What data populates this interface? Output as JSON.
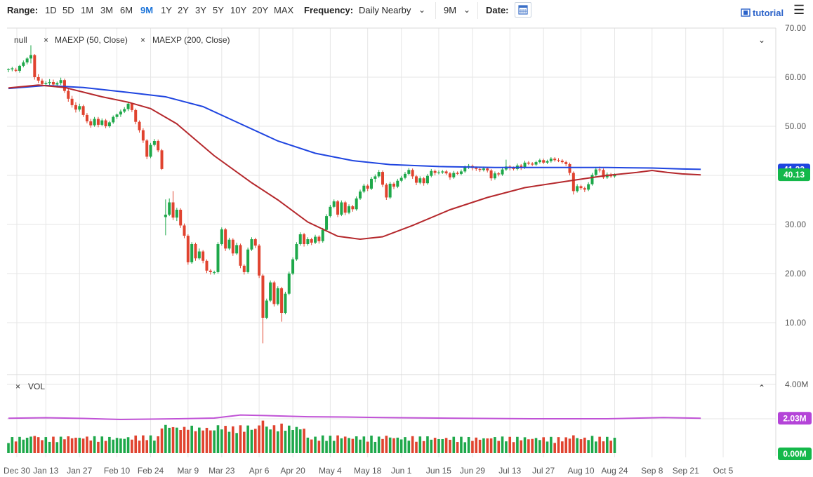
{
  "toolbar": {
    "range_label": "Range:",
    "ranges": [
      "1D",
      "5D",
      "1M",
      "3M",
      "6M",
      "9M",
      "1Y",
      "2Y",
      "3Y",
      "5Y",
      "10Y",
      "20Y",
      "MAX"
    ],
    "active_range": "9M",
    "frequency_label": "Frequency:",
    "frequency_value": "Daily Nearby",
    "period_value": "9M",
    "date_label": "Date:",
    "tutorial_label": "tutorial"
  },
  "legend": {
    "items": [
      "null",
      "MAEXP (50, Close)",
      "MAEXP (200, Close)"
    ],
    "volume_label": "VOL"
  },
  "chart_data": {
    "type": "candlestick",
    "x_ticks": [
      "Dec 30",
      "Jan 13",
      "Jan 27",
      "Feb 10",
      "Feb 24",
      "Mar 9",
      "Mar 23",
      "Apr 6",
      "Apr 20",
      "May 4",
      "May 18",
      "Jun 1",
      "Jun 15",
      "Jun 29",
      "Jul 13",
      "Jul 27",
      "Aug 10",
      "Aug 24",
      "Sep 8",
      "Sep 21",
      "Oct 5"
    ],
    "y_ticks": [
      "10.00",
      "20.00",
      "30.00",
      "40.00",
      "50.00",
      "60.00",
      "70.00"
    ],
    "ylim": [
      0,
      71
    ],
    "price_badge": "40.13",
    "ma200_badge": "41.23",
    "vol_ticks": [
      "4.00M"
    ],
    "vol_ylim": [
      0,
      4.0
    ],
    "vol_ma_badge": "2.03M",
    "vol_zero_badge": "0.00M",
    "colors": {
      "up": "#1ea84a",
      "down": "#e0432f",
      "ma50": "#b5282c",
      "ma200": "#1f45e0",
      "vol_ma": "#c052d6",
      "grid": "#e6e6e6",
      "badge_green": "#14b84a",
      "badge_blue": "#1f45e0",
      "badge_purple": "#b444d8"
    },
    "candles": [
      [
        61.5,
        61.8,
        61,
        61.6
      ],
      [
        61.6,
        62.1,
        61.2,
        61.8
      ],
      [
        61.5,
        61.9,
        61.0,
        61.3
      ],
      [
        61.3,
        62.5,
        60.9,
        62.3
      ],
      [
        62.3,
        63.4,
        62.0,
        63.0
      ],
      [
        63,
        64.1,
        62.6,
        63.8
      ],
      [
        63.8,
        66.5,
        62.8,
        64.5
      ],
      [
        64.5,
        64.7,
        59.5,
        60.0
      ],
      [
        60.0,
        60.6,
        58.8,
        59.3
      ],
      [
        59.3,
        59.7,
        58.2,
        58.6
      ],
      [
        58.6,
        59.2,
        58.1,
        58.8
      ],
      [
        58.8,
        59.6,
        58.4,
        59.0
      ],
      [
        59.0,
        59.5,
        58.2,
        58.5
      ],
      [
        58.5,
        59.1,
        57.9,
        58.8
      ],
      [
        58.8,
        59.9,
        58.4,
        59.4
      ],
      [
        59.4,
        59.7,
        56.8,
        57.2
      ],
      [
        57.2,
        57.7,
        55.0,
        55.6
      ],
      [
        55.6,
        56.2,
        53.8,
        54.3
      ],
      [
        54.3,
        54.9,
        52.8,
        53.4
      ],
      [
        53.4,
        54.6,
        53.0,
        54.1
      ],
      [
        54.1,
        54.4,
        51.9,
        52.3
      ],
      [
        52.3,
        52.7,
        50.6,
        51.0
      ],
      [
        51.0,
        51.5,
        49.7,
        50.2
      ],
      [
        50.2,
        51.9,
        49.9,
        51.5
      ],
      [
        51.5,
        51.9,
        49.8,
        50.3
      ],
      [
        50.3,
        51.6,
        50.0,
        51.2
      ],
      [
        51.2,
        51.5,
        49.6,
        50.0
      ],
      [
        50.0,
        51.1,
        49.7,
        50.8
      ],
      [
        50.8,
        52.2,
        50.5,
        51.9
      ],
      [
        51.9,
        52.6,
        51.5,
        52.4
      ],
      [
        52.4,
        53.4,
        51.9,
        53.0
      ],
      [
        53.0,
        53.9,
        52.7,
        53.5
      ],
      [
        53.5,
        55.0,
        53.1,
        54.6
      ],
      [
        54.6,
        54.8,
        52.9,
        53.3
      ],
      [
        53.3,
        53.6,
        50.4,
        50.9
      ],
      [
        50.9,
        51.2,
        48.7,
        49.2
      ],
      [
        49.2,
        49.6,
        46.6,
        47.1
      ],
      [
        47.1,
        47.4,
        43.3,
        43.8
      ],
      [
        43.8,
        46.6,
        43.5,
        46.2
      ],
      [
        46.2,
        47.4,
        45.9,
        47.0
      ],
      [
        47.0,
        47.3,
        44.7,
        45.1
      ],
      [
        45.1,
        45.4,
        41.1,
        41.3
      ],
      [
        31.5,
        35.1,
        27.8,
        32.0
      ],
      [
        32.0,
        35.3,
        31.7,
        34.5
      ],
      [
        34.5,
        36.8,
        30.9,
        31.4
      ],
      [
        31.4,
        33.4,
        30.7,
        33.0
      ],
      [
        33.0,
        33.3,
        29.3,
        29.8
      ],
      [
        29.8,
        30.2,
        27.2,
        27.7
      ],
      [
        27.7,
        28.0,
        21.8,
        22.3
      ],
      [
        22.3,
        26.4,
        22.0,
        26.0
      ],
      [
        26.0,
        26.3,
        22.6,
        23.1
      ],
      [
        23.1,
        25.1,
        22.8,
        24.5
      ],
      [
        24.5,
        24.8,
        22.1,
        22.6
      ],
      [
        22.6,
        22.9,
        20.1,
        20.6
      ],
      [
        20.6,
        20.9,
        19.8,
        20.3
      ],
      [
        20.3,
        20.6,
        19.8,
        20.3
      ],
      [
        20.3,
        26.4,
        20.0,
        26.0
      ],
      [
        26.0,
        29.4,
        25.7,
        29.0
      ],
      [
        29.0,
        29.3,
        24.6,
        25.1
      ],
      [
        25.1,
        27.3,
        24.8,
        26.9
      ],
      [
        26.9,
        27.2,
        23.6,
        24.1
      ],
      [
        24.1,
        26.3,
        23.8,
        25.8
      ],
      [
        25.8,
        26.1,
        21.1,
        21.6
      ],
      [
        21.6,
        21.9,
        19.8,
        20.3
      ],
      [
        20.3,
        25.3,
        20.0,
        24.9
      ],
      [
        24.9,
        27.4,
        24.6,
        27.0
      ],
      [
        27.0,
        27.3,
        25.2,
        25.7
      ],
      [
        25.7,
        26.0,
        19.1,
        19.6
      ],
      [
        19.6,
        19.9,
        5.8,
        11.0
      ],
      [
        11.0,
        14.9,
        10.7,
        14.5
      ],
      [
        14.5,
        18.6,
        14.2,
        18.2
      ],
      [
        18.2,
        18.5,
        13.3,
        13.8
      ],
      [
        13.8,
        17.4,
        13.5,
        17.0
      ],
      [
        17.0,
        17.3,
        10.2,
        12.0
      ],
      [
        12.0,
        16.3,
        11.7,
        15.9
      ],
      [
        15.9,
        20.4,
        15.6,
        20.0
      ],
      [
        20.0,
        23.3,
        19.7,
        22.9
      ],
      [
        22.9,
        26.4,
        22.6,
        26.0
      ],
      [
        26.0,
        28.4,
        25.7,
        28.0
      ],
      [
        28.0,
        28.3,
        25.5,
        26.0
      ],
      [
        26.0,
        27.4,
        25.7,
        27.0
      ],
      [
        27.0,
        27.3,
        25.8,
        26.3
      ],
      [
        26.3,
        27.9,
        26.0,
        27.5
      ],
      [
        27.5,
        27.8,
        26.1,
        26.6
      ],
      [
        26.6,
        29.3,
        26.3,
        28.9
      ],
      [
        28.9,
        32.1,
        28.6,
        31.7
      ],
      [
        31.7,
        34.0,
        31.4,
        33.6
      ],
      [
        33.6,
        35.1,
        33.3,
        34.7
      ],
      [
        34.7,
        35.0,
        31.5,
        32.0
      ],
      [
        32.0,
        34.9,
        31.7,
        34.5
      ],
      [
        34.5,
        34.8,
        31.9,
        32.4
      ],
      [
        32.4,
        34.1,
        32.1,
        33.7
      ],
      [
        33.7,
        34.0,
        32.6,
        33.1
      ],
      [
        33.1,
        35.7,
        32.8,
        35.3
      ],
      [
        35.3,
        37.1,
        35.0,
        36.7
      ],
      [
        36.7,
        38.3,
        36.4,
        37.9
      ],
      [
        37.9,
        38.2,
        36.8,
        37.3
      ],
      [
        37.3,
        39.7,
        37.0,
        39.3
      ],
      [
        39.3,
        40.2,
        38.6,
        39.8
      ],
      [
        39.8,
        41.1,
        39.5,
        40.7
      ],
      [
        40.7,
        41.0,
        37.6,
        38.1
      ],
      [
        38.1,
        38.4,
        35.0,
        35.5
      ],
      [
        35.5,
        38.7,
        35.2,
        38.3
      ],
      [
        38.3,
        38.6,
        37.2,
        37.7
      ],
      [
        37.7,
        39.3,
        37.4,
        38.9
      ],
      [
        38.9,
        39.9,
        38.6,
        39.5
      ],
      [
        39.5,
        40.7,
        39.2,
        40.3
      ],
      [
        40.3,
        41.5,
        40.0,
        41.1
      ],
      [
        41.1,
        41.4,
        39.3,
        39.8
      ],
      [
        39.8,
        40.1,
        38.0,
        38.5
      ],
      [
        38.5,
        39.8,
        38.2,
        39.4
      ],
      [
        39.4,
        39.7,
        37.9,
        38.4
      ],
      [
        38.4,
        40.3,
        38.1,
        39.9
      ],
      [
        39.9,
        41.3,
        39.6,
        40.9
      ],
      [
        40.9,
        41.2,
        40.0,
        40.5
      ],
      [
        40.5,
        41.0,
        40.2,
        40.6
      ],
      [
        40.6,
        41.1,
        40.3,
        40.8
      ],
      [
        40.8,
        41.1,
        40.1,
        40.4
      ],
      [
        40.4,
        40.7,
        39.1,
        39.6
      ],
      [
        39.6,
        40.9,
        39.3,
        40.5
      ],
      [
        40.5,
        40.8,
        40.1,
        40.3
      ],
      [
        40.3,
        41.2,
        40.0,
        40.8
      ],
      [
        40.8,
        42.0,
        40.5,
        41.6
      ],
      [
        41.6,
        42.3,
        41.3,
        41.9
      ],
      [
        41.9,
        42.2,
        41.0,
        41.5
      ],
      [
        41.5,
        41.8,
        40.9,
        41.3
      ],
      [
        41.3,
        41.6,
        40.7,
        41.1
      ],
      [
        41.1,
        41.8,
        40.8,
        41.4
      ],
      [
        41.4,
        41.7,
        40.6,
        41.0
      ],
      [
        41.0,
        41.3,
        38.9,
        39.4
      ],
      [
        39.4,
        40.8,
        39.1,
        40.4
      ],
      [
        40.4,
        40.7,
        39.8,
        40.2
      ],
      [
        40.2,
        41.6,
        39.9,
        41.2
      ],
      [
        41.2,
        43.2,
        40.9,
        41.8
      ],
      [
        41.8,
        42.1,
        41.0,
        41.5
      ],
      [
        41.5,
        41.8,
        41.0,
        41.3
      ],
      [
        41.3,
        42.4,
        41.0,
        42.0
      ],
      [
        42.0,
        42.3,
        41.1,
        41.6
      ],
      [
        41.6,
        43.0,
        41.3,
        42.6
      ],
      [
        42.6,
        42.9,
        42.1,
        42.4
      ],
      [
        42.4,
        42.7,
        41.9,
        42.2
      ],
      [
        42.2,
        43.0,
        41.9,
        42.7
      ],
      [
        42.7,
        43.4,
        42.4,
        43.1
      ],
      [
        43.1,
        43.4,
        42.3,
        42.6
      ],
      [
        42.6,
        43.2,
        42.3,
        42.9
      ],
      [
        42.9,
        43.7,
        42.6,
        43.4
      ],
      [
        43.4,
        43.7,
        42.8,
        43.1
      ],
      [
        43.1,
        43.5,
        42.7,
        43.0
      ],
      [
        43.0,
        43.3,
        42.4,
        42.7
      ],
      [
        42.7,
        43.0,
        41.9,
        42.3
      ],
      [
        42.3,
        42.6,
        40.0,
        40.5
      ],
      [
        40.5,
        40.8,
        36.1,
        36.8
      ],
      [
        36.8,
        38.2,
        36.5,
        37.8
      ],
      [
        37.8,
        38.1,
        37.0,
        37.4
      ],
      [
        37.4,
        37.7,
        36.6,
        37.1
      ],
      [
        37.1,
        38.6,
        36.8,
        38.2
      ],
      [
        38.2,
        40.5,
        37.9,
        40.1
      ],
      [
        40.1,
        41.6,
        39.8,
        41.2
      ],
      [
        41.2,
        41.8,
        40.6,
        41.1
      ],
      [
        41.1,
        41.4,
        39.3,
        39.6
      ],
      [
        39.6,
        40.6,
        39.3,
        40.2
      ],
      [
        40.2,
        40.5,
        39.5,
        39.8
      ],
      [
        39.8,
        40.4,
        39.5,
        40.13
      ]
    ],
    "ma50": [
      [
        0,
        57.8
      ],
      [
        8,
        58.4
      ],
      [
        15,
        57.9
      ],
      [
        25,
        56.0
      ],
      [
        32,
        54.9
      ],
      [
        38,
        53.6
      ],
      [
        45,
        50.5
      ],
      [
        55,
        44.0
      ],
      [
        65,
        38.5
      ],
      [
        72,
        35.0
      ],
      [
        80,
        30.5
      ],
      [
        88,
        27.6
      ],
      [
        94,
        27.0
      ],
      [
        100,
        27.5
      ],
      [
        108,
        29.8
      ],
      [
        118,
        33.0
      ],
      [
        128,
        35.5
      ],
      [
        138,
        37.5
      ],
      [
        150,
        38.9
      ],
      [
        160,
        40.0
      ],
      [
        168,
        40.6
      ],
      [
        172,
        41.0
      ],
      [
        176,
        40.6
      ],
      [
        180,
        40.3
      ],
      [
        185,
        40.1
      ]
    ],
    "ma200": [
      [
        0,
        57.7
      ],
      [
        10,
        58.3
      ],
      [
        20,
        57.9
      ],
      [
        32,
        56.9
      ],
      [
        42,
        56.0
      ],
      [
        52,
        54.0
      ],
      [
        62,
        50.5
      ],
      [
        72,
        47.0
      ],
      [
        82,
        44.5
      ],
      [
        92,
        43.0
      ],
      [
        102,
        42.2
      ],
      [
        115,
        41.8
      ],
      [
        130,
        41.6
      ],
      [
        145,
        41.6
      ],
      [
        160,
        41.6
      ],
      [
        172,
        41.5
      ],
      [
        180,
        41.3
      ],
      [
        185,
        41.23
      ]
    ],
    "volume_ma": [
      [
        0,
        2.03
      ],
      [
        10,
        2.06
      ],
      [
        20,
        2.02
      ],
      [
        30,
        1.96
      ],
      [
        45,
        2.0
      ],
      [
        55,
        2.04
      ],
      [
        62,
        2.22
      ],
      [
        70,
        2.18
      ],
      [
        80,
        2.12
      ],
      [
        90,
        2.1
      ],
      [
        100,
        2.07
      ],
      [
        120,
        2.03
      ],
      [
        140,
        2.0
      ],
      [
        160,
        2.0
      ],
      [
        175,
        2.07
      ],
      [
        185,
        2.03
      ]
    ]
  }
}
